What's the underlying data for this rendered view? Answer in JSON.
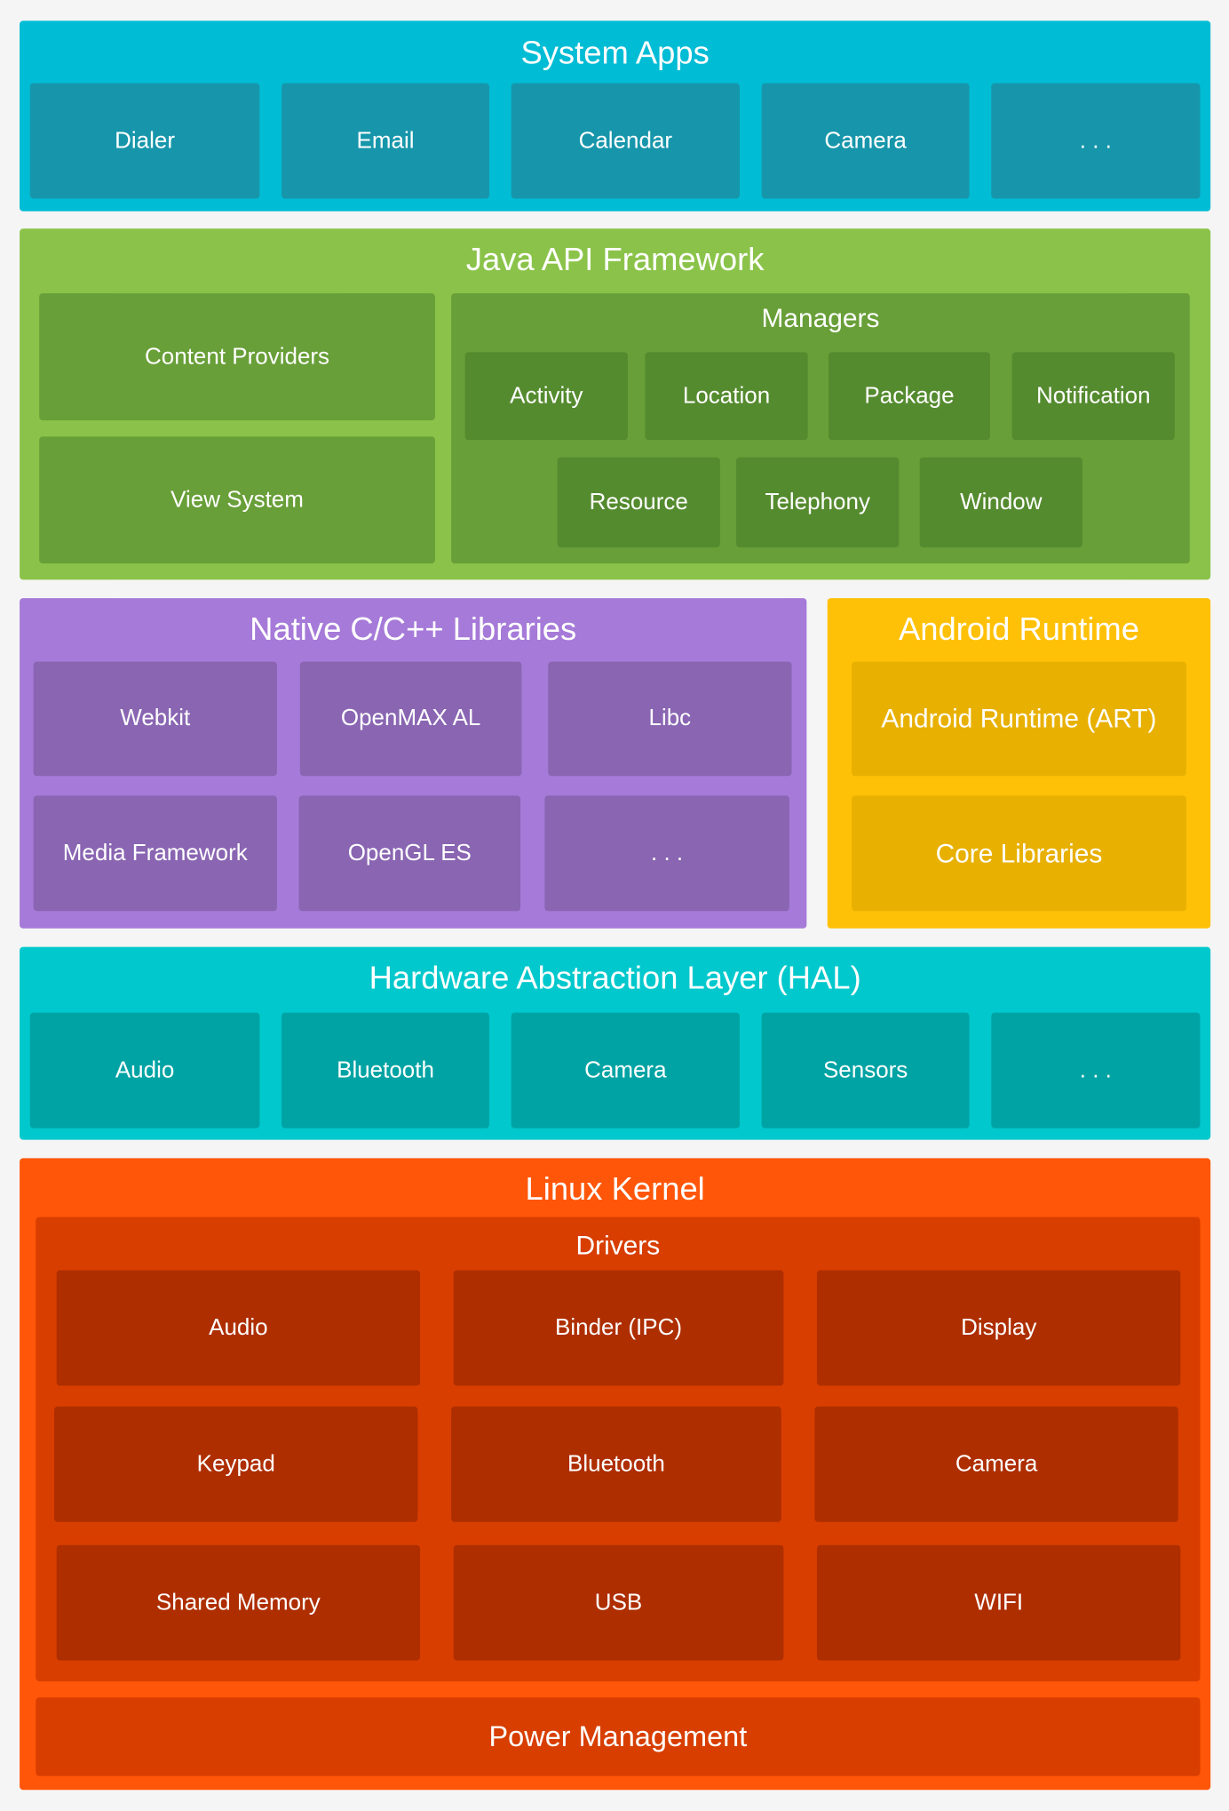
{
  "system_apps": {
    "title": "System Apps",
    "items": [
      "Dialer",
      "Email",
      "Calendar",
      "Camera",
      ". . ."
    ],
    "color": "#00bcd4"
  },
  "java_api": {
    "title": "Java API Framework",
    "content_providers": "Content Providers",
    "view_system": "View System",
    "managers": {
      "title": "Managers",
      "items": [
        "Activity",
        "Location",
        "Package",
        "Notification",
        "Resource",
        "Telephony",
        "Window"
      ]
    },
    "color": "#8bc34a"
  },
  "native_libs": {
    "title": "Native C/C++ Libraries",
    "items": [
      "Webkit",
      "OpenMAX AL",
      "Libc",
      "Media Framework",
      "OpenGL ES",
      ". . ."
    ],
    "color": "#a67ad8"
  },
  "android_runtime": {
    "title": "Android Runtime",
    "items": [
      "Android Runtime (ART)",
      "Core Libraries"
    ],
    "color": "#ffc107"
  },
  "hal": {
    "title": "Hardware Abstraction Layer (HAL)",
    "items": [
      "Audio",
      "Bluetooth",
      "Camera",
      "Sensors",
      ". . ."
    ],
    "color": "#00c8cc"
  },
  "linux_kernel": {
    "title": "Linux Kernel",
    "drivers": {
      "title": "Drivers",
      "items": [
        "Audio",
        "Binder (IPC)",
        "Display",
        "Keypad",
        "Bluetooth",
        "Camera",
        "Shared Memory",
        "USB",
        "WIFI"
      ]
    },
    "power_management": "Power Management",
    "color": "#ff5609"
  }
}
